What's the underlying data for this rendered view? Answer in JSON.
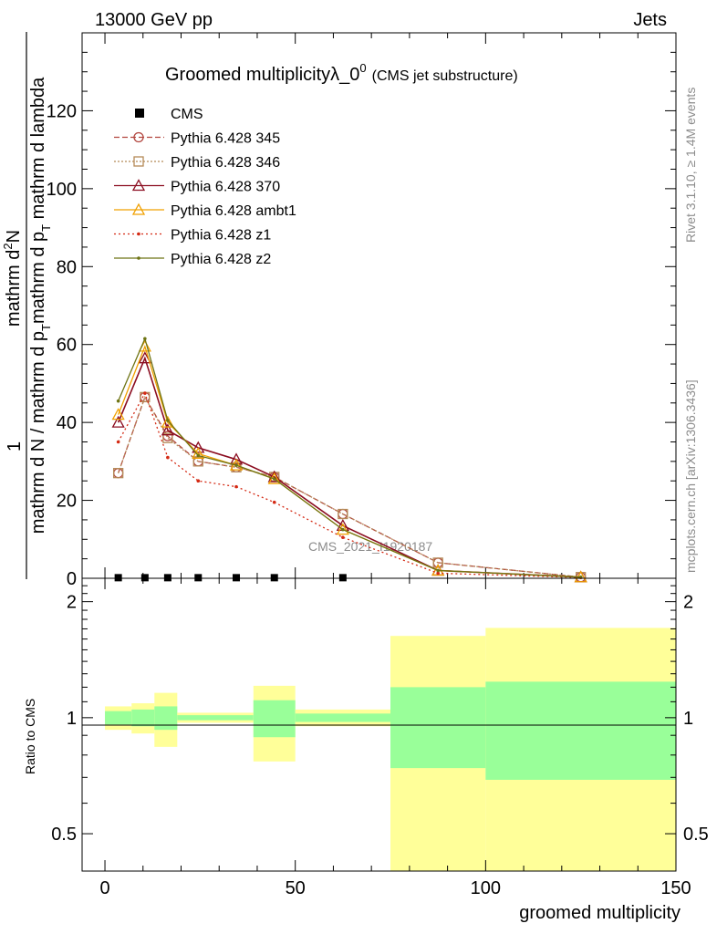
{
  "header": {
    "left": "13000 GeV pp",
    "right": "Jets"
  },
  "side": {
    "rivet": "Rivet 3.1.10, ≥ 1.4M events",
    "mcplots": "mcplots.cern.ch [arXiv:1306.3436]"
  },
  "watermark": "CMS_2021_I1920187",
  "chart_data": [
    {
      "type": "line",
      "title": "Groomed multiplicityλ_0",
      "title_sup": "0",
      "subtitle": "(CMS jet substructure)",
      "ylabel_num": "mathrm d²N",
      "ylabel_den": "mathrm d N / mathrm d p_T mathrm d p_T mathrm d lambda",
      "ylabel_one": "1",
      "ylabel_num_parts": [
        "mathrm d",
        "2",
        "N"
      ],
      "ylabel_den_parts": [
        "mathrm d N / mathrm d p",
        "T",
        "mathrm d p",
        "T",
        " mathrm d lambda"
      ],
      "xlim": [
        -6,
        150
      ],
      "ylim": [
        0,
        140
      ],
      "yticks": [
        0,
        20,
        40,
        60,
        80,
        100,
        120
      ],
      "legend_position": "top-left",
      "cms": {
        "name": "CMS",
        "x": [
          3.5,
          10.5,
          16.5,
          24.5,
          34.5,
          44.5,
          62.5
        ],
        "y": [
          0.15,
          0.15,
          0.15,
          0.15,
          0.15,
          0.15,
          0.15
        ]
      },
      "series": [
        {
          "name": "Pythia 6.428 345",
          "color": "#b2463f",
          "dash": "6,3",
          "marker": "circle",
          "x": [
            3.5,
            10.5,
            16.5,
            24.5,
            34.5,
            44.5,
            62.5,
            87.5,
            125
          ],
          "y": [
            27,
            46.5,
            36.5,
            30,
            28.5,
            26,
            16.5,
            4,
            0.3
          ]
        },
        {
          "name": "Pythia 6.428 346",
          "color": "#b58a58",
          "dash": "2,2",
          "marker": "square",
          "x": [
            3.5,
            10.5,
            16.5,
            24.5,
            34.5,
            44.5,
            62.5,
            87.5,
            125
          ],
          "y": [
            27,
            46.5,
            36,
            30,
            28.5,
            26,
            16.5,
            4,
            0.3
          ]
        },
        {
          "name": "Pythia 6.428 370",
          "color": "#8b0d20",
          "dash": "",
          "marker": "triangle",
          "x": [
            3.5,
            10.5,
            16.5,
            24.5,
            34.5,
            44.5,
            62.5,
            87.5,
            125
          ],
          "y": [
            40,
            56.5,
            38,
            33.5,
            30.5,
            26,
            13.5,
            2,
            0.3
          ]
        },
        {
          "name": "Pythia 6.428 ambt1",
          "color": "#f0a000",
          "dash": "",
          "marker": "triangle",
          "x": [
            3.5,
            10.5,
            16.5,
            24.5,
            34.5,
            44.5,
            62.5,
            87.5,
            125
          ],
          "y": [
            42,
            59.5,
            40,
            32,
            29,
            25.5,
            12.5,
            2,
            0.3
          ]
        },
        {
          "name": "Pythia 6.428 z1",
          "color": "#d42a14",
          "dash": "2,3",
          "marker": "dot",
          "x": [
            3.5,
            10.5,
            16.5,
            24.5,
            34.5,
            44.5,
            62.5,
            87.5,
            125
          ],
          "y": [
            35,
            47.5,
            31,
            25,
            23.5,
            19.5,
            10.5,
            1.3,
            0.2
          ]
        },
        {
          "name": "Pythia 6.428 z2",
          "color": "#6e7414",
          "dash": "",
          "marker": "dot",
          "x": [
            3.5,
            10.5,
            16.5,
            24.5,
            34.5,
            44.5,
            62.5,
            87.5,
            125
          ],
          "y": [
            45.5,
            61.5,
            40.5,
            31.5,
            29,
            25.5,
            12.5,
            2,
            0.3
          ]
        }
      ]
    },
    {
      "type": "area",
      "ylabel": "Ratio to CMS",
      "xlabel": "groomed multiplicity",
      "xlim": [
        -6,
        150
      ],
      "ylim": [
        0.4,
        2.3
      ],
      "log_scale": true,
      "xticks": [
        0,
        50,
        100,
        150
      ],
      "yticks": [
        0.5,
        1,
        2
      ],
      "reference": 1,
      "bands": [
        {
          "x0": 0,
          "x1": 7,
          "stat": [
            0.96,
            1.04
          ],
          "total": [
            0.93,
            1.07
          ]
        },
        {
          "x0": 7,
          "x1": 13,
          "stat": [
            0.95,
            1.05
          ],
          "total": [
            0.91,
            1.09
          ]
        },
        {
          "x0": 13,
          "x1": 19,
          "stat": [
            0.93,
            1.07
          ],
          "total": [
            0.84,
            1.16
          ]
        },
        {
          "x0": 19,
          "x1": 39,
          "stat": [
            0.985,
            1.015
          ],
          "total": [
            0.97,
            1.03
          ]
        },
        {
          "x0": 39,
          "x1": 50,
          "stat": [
            0.89,
            1.11
          ],
          "total": [
            0.77,
            1.21
          ]
        },
        {
          "x0": 50,
          "x1": 75,
          "stat": [
            0.975,
            1.025
          ],
          "total": [
            0.95,
            1.05
          ]
        },
        {
          "x0": 75,
          "x1": 100,
          "stat": [
            0.74,
            1.2
          ],
          "total": [
            0.4,
            1.63
          ]
        },
        {
          "x0": 100,
          "x1": 150,
          "stat": [
            0.69,
            1.24
          ],
          "total": [
            0.4,
            1.71
          ]
        }
      ]
    }
  ],
  "colors": {
    "stat_band": "#99ff99",
    "total_band": "#ffff99"
  }
}
